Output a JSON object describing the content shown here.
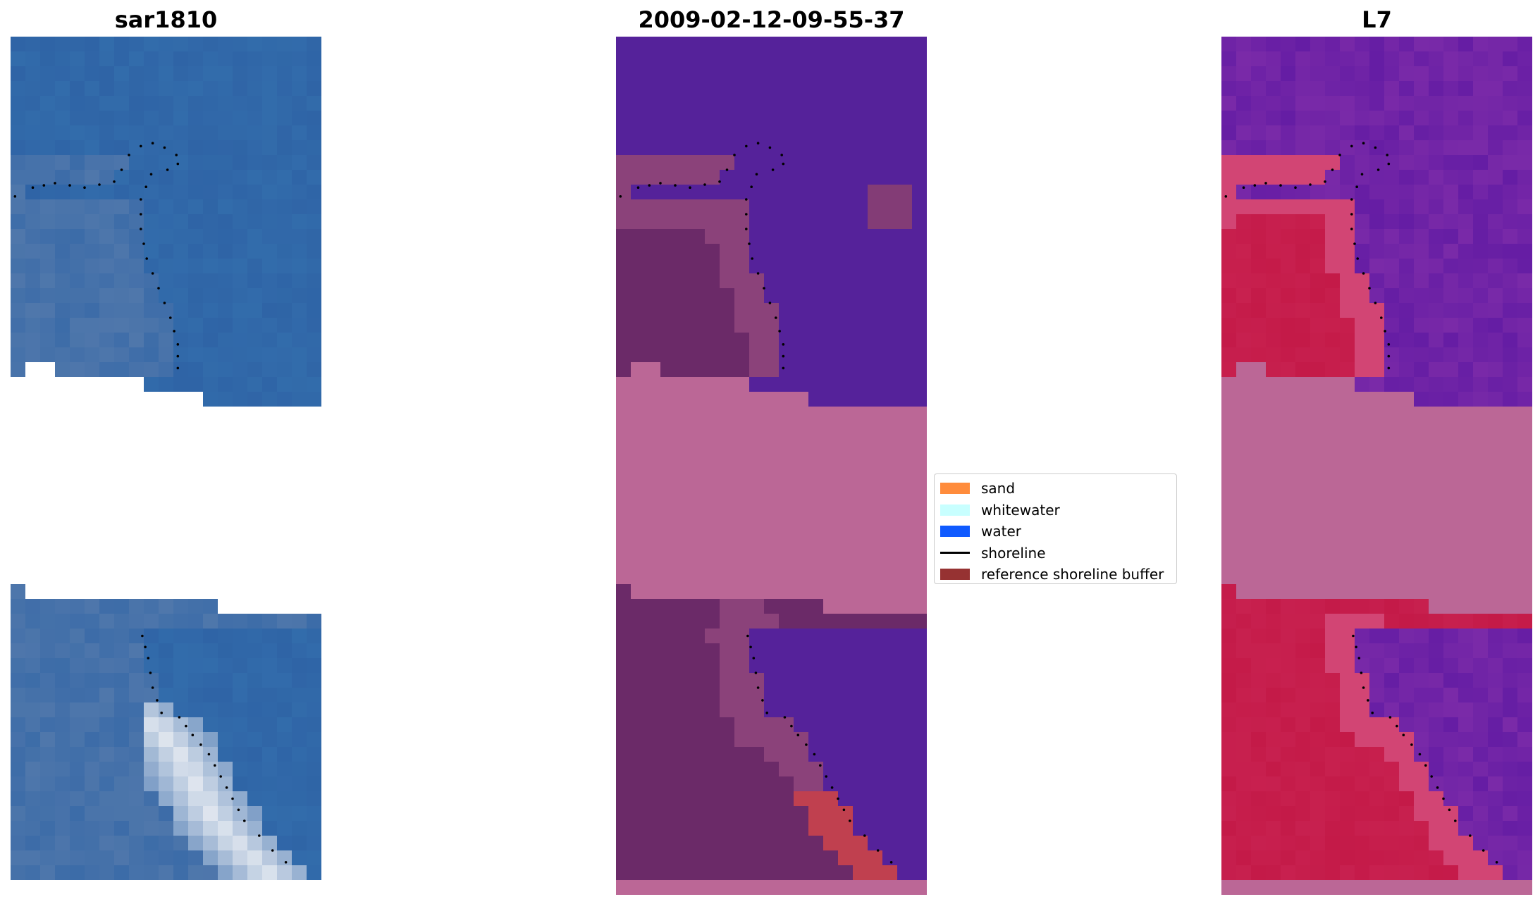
{
  "panels": [
    {
      "title": "sar1810",
      "kind": "rgb"
    },
    {
      "title": "2009-02-12-09-55-37",
      "kind": "classified"
    },
    {
      "title": "L7",
      "kind": "falsecolor"
    }
  ],
  "legend": {
    "items": [
      {
        "label": "sand",
        "color": "#ff8c3c",
        "type": "patch"
      },
      {
        "label": "whitewater",
        "color": "#c8ffff",
        "type": "patch"
      },
      {
        "label": "water",
        "color": "#0f5aff",
        "type": "patch"
      },
      {
        "label": "shoreline",
        "color": "#000000",
        "type": "line"
      },
      {
        "label": "reference shoreline buffer",
        "color": "#963232",
        "type": "patch"
      }
    ]
  },
  "colors": {
    "nodata_mask": "#bb6796",
    "water_class": "#55229a",
    "land_class": "#6b2a68",
    "sand_class": "#c0404f",
    "rgb_water": "#2f64a6",
    "rgb_sand": "#e8ecf2",
    "falsecolor_water": "#7a2aa8",
    "falsecolor_land": "#c41a48"
  }
}
